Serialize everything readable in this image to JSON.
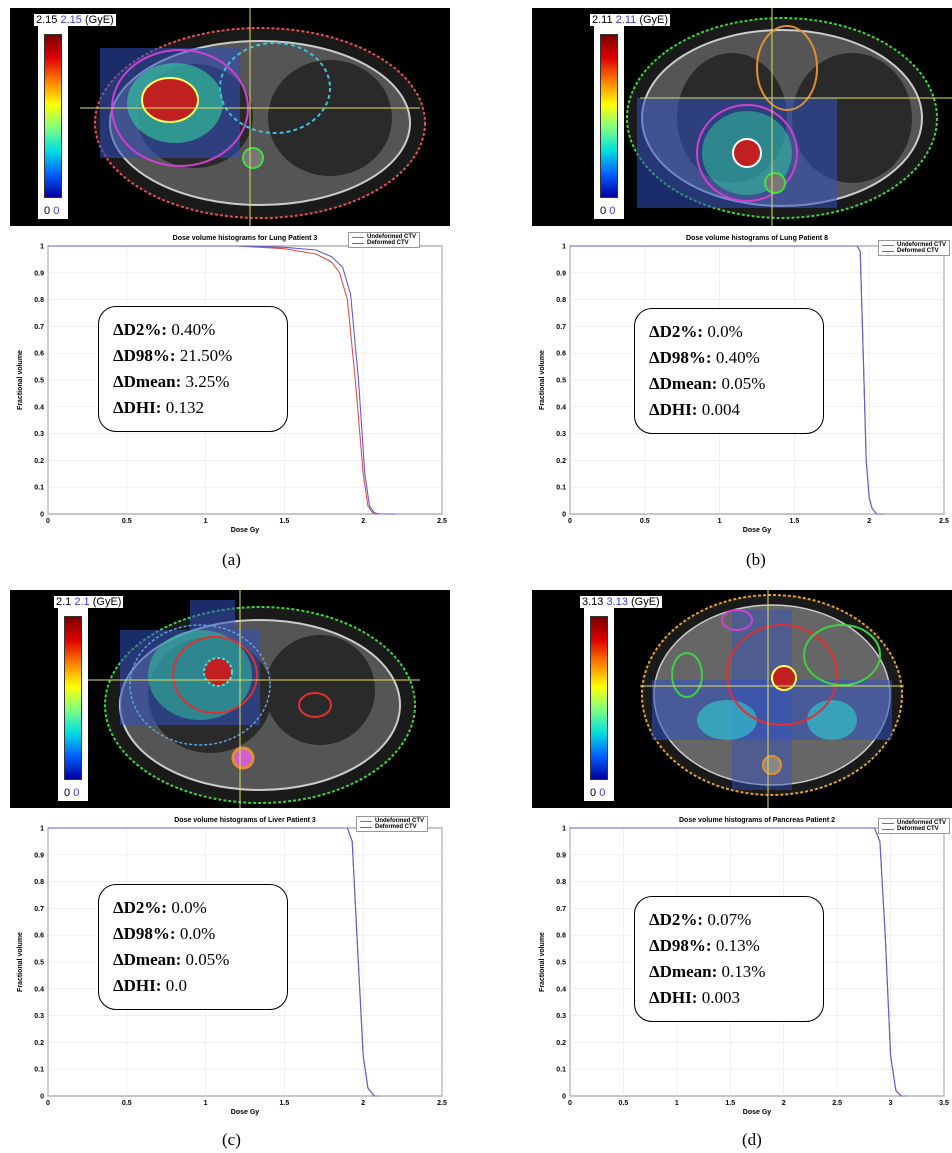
{
  "colors": {
    "undeformed": "#d9534f",
    "deformed": "#6a5acd",
    "grid": "#e6e6e6"
  },
  "panels": [
    {
      "id": "a",
      "caption": "(a)",
      "colorbar": {
        "max_black": "2.15",
        "max_blue": "2.15",
        "unit": "(GyE)",
        "min_black": "0",
        "min_blue": "0"
      },
      "stats": [
        {
          "label": "ΔD2%:",
          "value": "0.40%"
        },
        {
          "label": "ΔD98%:",
          "value": "21.50%"
        },
        {
          "label": "ΔDmean:",
          "value": "3.25%"
        },
        {
          "label": "ΔDHI:",
          "value": "0.132"
        }
      ]
    },
    {
      "id": "b",
      "caption": "(b)",
      "colorbar": {
        "max_black": "2.11",
        "max_blue": "2.11",
        "unit": "(GyE)",
        "min_black": "0",
        "min_blue": "0"
      },
      "stats": [
        {
          "label": "ΔD2%:",
          "value": "0.0%"
        },
        {
          "label": "ΔD98%:",
          "value": "0.40%"
        },
        {
          "label": "ΔDmean:",
          "value": "0.05%"
        },
        {
          "label": "ΔDHI:",
          "value": "0.004"
        }
      ]
    },
    {
      "id": "c",
      "caption": "(c)",
      "colorbar": {
        "max_black": "2.1",
        "max_blue": "2.1",
        "unit": "(GyE)",
        "min_black": "0",
        "min_blue": "0"
      },
      "stats": [
        {
          "label": "ΔD2%:",
          "value": "0.0%"
        },
        {
          "label": "ΔD98%:",
          "value": "0.0%"
        },
        {
          "label": "ΔDmean:",
          "value": "0.05%"
        },
        {
          "label": "ΔDHI:",
          "value": "0.0"
        }
      ]
    },
    {
      "id": "d",
      "caption": "(d)",
      "colorbar": {
        "max_black": "3.13",
        "max_blue": "3.13",
        "unit": "(GyE)",
        "min_black": "0",
        "min_blue": "0"
      },
      "stats": [
        {
          "label": "ΔD2%:",
          "value": "0.07%"
        },
        {
          "label": "ΔD98%:",
          "value": "0.13%"
        },
        {
          "label": "ΔDmean:",
          "value": "0.13%"
        },
        {
          "label": "ΔDHI:",
          "value": "0.003"
        }
      ]
    }
  ],
  "chart_data": [
    {
      "type": "line",
      "title": "Dose volume histograms for Lung Patient 3",
      "xlabel": "Dose Gy",
      "ylabel": "Fractional volume",
      "xlim": [
        0,
        2.5
      ],
      "ylim": [
        0,
        1
      ],
      "xticks": [
        "0",
        "0.5",
        "1",
        "1.5",
        "2",
        "2.5"
      ],
      "yticks": [
        "0",
        "0.1",
        "0.2",
        "0.3",
        "0.4",
        "0.5",
        "0.6",
        "0.7",
        "0.8",
        "0.9",
        "1"
      ],
      "legend": "top-right",
      "grid": true,
      "series": [
        {
          "name": "Undeformed CTV",
          "x": [
            0,
            1.2,
            1.5,
            1.7,
            1.8,
            1.85,
            1.9,
            1.95,
            2.0,
            2.03,
            2.06,
            2.1,
            2.2
          ],
          "y": [
            1,
            1,
            0.99,
            0.97,
            0.94,
            0.9,
            0.8,
            0.5,
            0.15,
            0.03,
            0.005,
            0,
            0
          ]
        },
        {
          "name": "Deformed CTV",
          "x": [
            0,
            1.2,
            1.5,
            1.7,
            1.8,
            1.87,
            1.92,
            1.97,
            2.01,
            2.04,
            2.07,
            2.1,
            2.2
          ],
          "y": [
            1,
            1,
            0.995,
            0.985,
            0.96,
            0.92,
            0.82,
            0.5,
            0.15,
            0.03,
            0.005,
            0,
            0
          ]
        }
      ]
    },
    {
      "type": "line",
      "title": "Dose volume histograms of Lung Patient 8",
      "xlabel": "Dose Gy",
      "ylabel": "Fractional volume",
      "xlim": [
        0,
        2.5
      ],
      "ylim": [
        0,
        1
      ],
      "xticks": [
        "0",
        "0.5",
        "1",
        "1.5",
        "2",
        "2.5"
      ],
      "yticks": [
        "0",
        "0.1",
        "0.2",
        "0.3",
        "0.4",
        "0.5",
        "0.6",
        "0.7",
        "0.8",
        "0.9",
        "1"
      ],
      "legend": "top-right",
      "grid": true,
      "series": [
        {
          "name": "Undeformed CTV",
          "x": [
            0,
            1.8,
            1.92,
            1.94,
            1.96,
            1.98,
            2.0,
            2.02,
            2.05,
            2.1
          ],
          "y": [
            1,
            1,
            1,
            0.98,
            0.6,
            0.2,
            0.06,
            0.02,
            0,
            0
          ]
        },
        {
          "name": "Deformed CTV",
          "x": [
            0,
            1.8,
            1.92,
            1.94,
            1.96,
            1.98,
            2.0,
            2.02,
            2.05,
            2.1
          ],
          "y": [
            1,
            1,
            1,
            0.98,
            0.6,
            0.2,
            0.06,
            0.02,
            0,
            0
          ]
        }
      ]
    },
    {
      "type": "line",
      "title": "Dose volume histograms of Liver Patient 3",
      "xlabel": "Dose Gy",
      "ylabel": "Fractional volume",
      "xlim": [
        0,
        2.5
      ],
      "ylim": [
        0,
        1
      ],
      "xticks": [
        "0",
        "0.5",
        "1",
        "1.5",
        "2",
        "2.5"
      ],
      "yticks": [
        "0",
        "0.1",
        "0.2",
        "0.3",
        "0.4",
        "0.5",
        "0.6",
        "0.7",
        "0.8",
        "0.9",
        "1"
      ],
      "legend": "top-right",
      "grid": true,
      "series": [
        {
          "name": "Undeformed CTV",
          "x": [
            0,
            1.8,
            1.9,
            1.93,
            1.96,
            2.0,
            2.03,
            2.07,
            2.1
          ],
          "y": [
            1,
            1,
            1,
            0.95,
            0.6,
            0.15,
            0.03,
            0,
            0
          ]
        },
        {
          "name": "Deformed CTV",
          "x": [
            0,
            1.8,
            1.9,
            1.93,
            1.96,
            2.0,
            2.03,
            2.07,
            2.1
          ],
          "y": [
            1,
            1,
            1,
            0.95,
            0.6,
            0.15,
            0.03,
            0,
            0
          ]
        }
      ]
    },
    {
      "type": "line",
      "title": "Dose volume histograms of Pancreas Patient 2",
      "xlabel": "Dose Gy",
      "ylabel": "Fractional volume",
      "xlim": [
        0,
        3.5
      ],
      "ylim": [
        0,
        1
      ],
      "xticks": [
        "0",
        "0.5",
        "1",
        "1.5",
        "2",
        "2.5",
        "3",
        "3.5"
      ],
      "yticks": [
        "0",
        "0.1",
        "0.2",
        "0.3",
        "0.4",
        "0.5",
        "0.6",
        "0.7",
        "0.8",
        "0.9",
        "1"
      ],
      "legend": "top-right",
      "grid": true,
      "series": [
        {
          "name": "Undeformed CTV",
          "x": [
            0,
            2.7,
            2.85,
            2.9,
            2.95,
            3.0,
            3.05,
            3.1,
            3.15
          ],
          "y": [
            1,
            1,
            1,
            0.95,
            0.6,
            0.15,
            0.02,
            0,
            0
          ]
        },
        {
          "name": "Deformed CTV",
          "x": [
            0,
            2.7,
            2.85,
            2.9,
            2.95,
            3.0,
            3.05,
            3.1,
            3.15
          ],
          "y": [
            1,
            1,
            1,
            0.95,
            0.6,
            0.15,
            0.02,
            0,
            0
          ]
        }
      ]
    }
  ]
}
